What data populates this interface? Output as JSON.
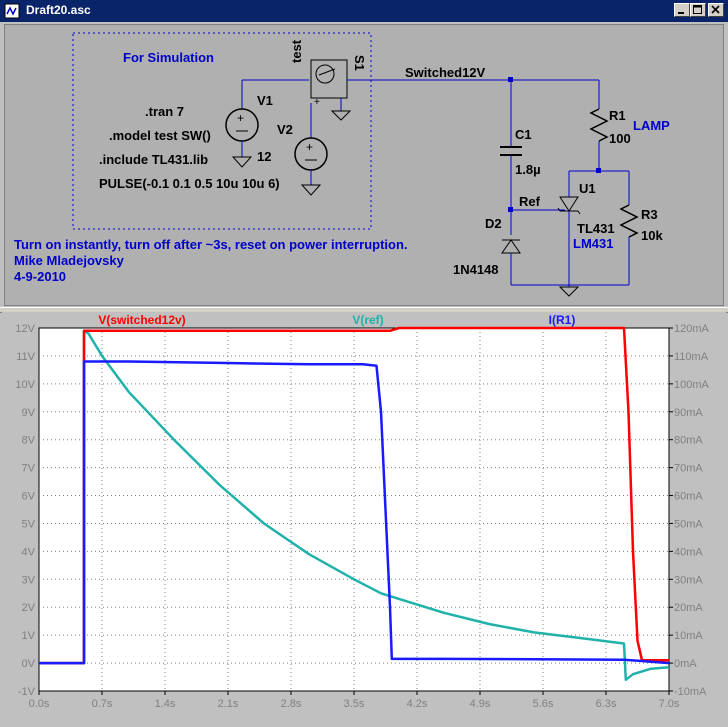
{
  "window": {
    "title": "Draft20.asc"
  },
  "schematic": {
    "sim_box_label": "For Simulation",
    "directives": [
      ".tran 7",
      ".model test SW()",
      ".include TL431.lib",
      "PULSE(-0.1 0.1 0.5 10u 10u 6)"
    ],
    "v1": {
      "name": "V1",
      "value": "12"
    },
    "v2": {
      "name": "V2"
    },
    "switch": {
      "name": "S1",
      "model": "test"
    },
    "net_switched": "Switched12V",
    "c1": {
      "name": "C1",
      "value": "1.8µ"
    },
    "r1": {
      "name": "R1",
      "value": "100",
      "note": "LAMP"
    },
    "u1": {
      "name": "U1",
      "part": "TL431",
      "alt": "LM431"
    },
    "r3": {
      "name": "R3",
      "value": "10k"
    },
    "d2": {
      "name": "D2",
      "part": "1N4148"
    },
    "net_ref": "Ref",
    "comment": "Turn on instantly, turn off after ~3s, reset on power interruption.",
    "author": "Mike Mladejovsky",
    "date": "4-9-2010"
  },
  "colors": {
    "wire": "#0000cc",
    "label_blue": "#0000cc",
    "trace_red": "#ff0000",
    "trace_teal": "#20b2aa",
    "trace_blue": "#1a1aff"
  },
  "chart_data": {
    "type": "line",
    "series": [
      {
        "name": "V(switched12v)",
        "axis": "left",
        "color": "#ff0000",
        "x": [
          0,
          0.5,
          0.5,
          0.6,
          2.0,
          3.9,
          4.0,
          6.4,
          6.5,
          6.55,
          6.6,
          6.65,
          6.7,
          7.0
        ],
        "y": [
          0,
          0,
          11.9,
          11.9,
          11.9,
          11.9,
          12.0,
          12.0,
          12.0,
          9.0,
          4.0,
          0.8,
          0.1,
          0.1
        ]
      },
      {
        "name": "V(ref)",
        "axis": "left",
        "color": "#20b2aa",
        "x": [
          0,
          0.5,
          0.5,
          0.55,
          0.7,
          1.0,
          1.5,
          2.0,
          2.5,
          3.0,
          3.5,
          3.8,
          4.0,
          4.5,
          5.0,
          5.5,
          6.0,
          6.5,
          6.52,
          6.6,
          6.8,
          7.0
        ],
        "y": [
          0,
          0,
          11.9,
          11.8,
          11.0,
          9.7,
          8.0,
          6.4,
          5.0,
          3.9,
          3.0,
          2.5,
          2.3,
          1.8,
          1.4,
          1.1,
          0.9,
          0.7,
          -0.6,
          -0.4,
          -0.2,
          -0.15
        ]
      },
      {
        "name": "I(R1)",
        "axis": "right",
        "color": "#1a1aff",
        "x": [
          0,
          0.5,
          0.5,
          1.0,
          2.0,
          3.0,
          3.6,
          3.75,
          3.8,
          3.9,
          3.92,
          4.5,
          5.5,
          6.5,
          7.0
        ],
        "y": [
          0,
          0,
          108,
          108,
          107.5,
          107,
          107,
          106.5,
          90,
          20,
          1.5,
          1.5,
          1.4,
          1.2,
          0
        ]
      }
    ],
    "x_ticks": [
      "0.0s",
      "0.7s",
      "1.4s",
      "2.1s",
      "2.8s",
      "3.5s",
      "4.2s",
      "4.9s",
      "5.6s",
      "6.3s",
      "7.0s"
    ],
    "y_left_ticks": [
      "12V",
      "11V",
      "10V",
      "9V",
      "8V",
      "7V",
      "6V",
      "5V",
      "4V",
      "3V",
      "2V",
      "1V",
      "0V",
      "-1V"
    ],
    "y_right_ticks": [
      "120mA",
      "110mA",
      "100mA",
      "90mA",
      "80mA",
      "70mA",
      "60mA",
      "50mA",
      "40mA",
      "30mA",
      "20mA",
      "10mA",
      "0mA",
      "-10mA"
    ],
    "xlim": [
      0,
      7
    ],
    "ylim_left": [
      -1,
      12
    ],
    "ylim_right": [
      -10,
      120
    ],
    "grid": true
  }
}
